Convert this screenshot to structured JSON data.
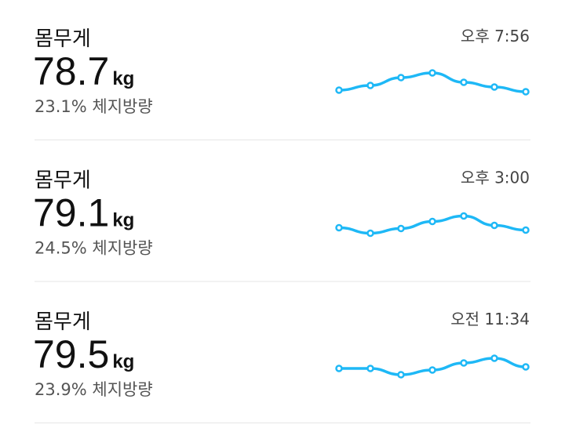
{
  "entries": [
    {
      "label": "몸무게",
      "weight": 78.7,
      "unit": "kg",
      "body_fat": "23.1% 체지방량",
      "time": "오후 7:56",
      "trend": [
        2,
        8,
        18,
        24,
        12,
        6,
        0
      ]
    },
    {
      "label": "몸무게",
      "weight": 79.1,
      "unit": "kg",
      "body_fat": "24.5% 체지방량",
      "time": "오후 3:00",
      "trend": [
        7,
        0,
        6,
        15,
        22,
        10,
        4
      ]
    },
    {
      "label": "몸무게",
      "weight": 79.5,
      "unit": "kg",
      "body_fat": "23.9% 체지방량",
      "time": "오전 11:34",
      "trend": [
        8,
        8,
        0,
        6,
        15,
        21,
        10
      ]
    }
  ]
}
